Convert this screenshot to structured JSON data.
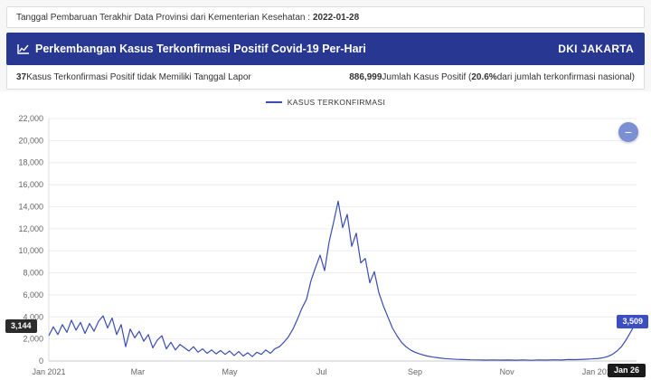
{
  "top_bar": {
    "label": "Tanggal Pembaruan Terakhir Data Provinsi dari Kementerian Kesehatan :",
    "date": "2022-01-28"
  },
  "header": {
    "title": "Perkembangan Kasus Terkonfirmasi Positif Covid-19 Per-Hari",
    "region": "DKI JAKARTA"
  },
  "stats_bar": {
    "left_value": "37",
    "left_label": "Kasus Terkonfirmasi Positif tidak Memiliki Tanggal Lapor",
    "right_value": "886,999",
    "right_label1": "Jumlah Kasus Positif (",
    "right_pct": "20.6%",
    "right_label2": "dari jumlah terkonfirmasi nasional)"
  },
  "chart": {
    "legend": "KASUS TERKONFIRMASI",
    "left_marker": "3,144",
    "right_marker": "3,509",
    "end_tick": "Jan 26",
    "minus_button": "−",
    "colors": {
      "line": "#3a4cb1",
      "header": "#283791",
      "right_marker_bg": "#3c4ec1",
      "left_marker_bg": "#2b2b2b"
    }
  },
  "chart_data": {
    "type": "line",
    "title": "Perkembangan Kasus Terkonfirmasi Positif Covid-19 Per-Hari (DKI Jakarta)",
    "series_name": "KASUS TERKONFIRMASI",
    "ylim": [
      0,
      22000
    ],
    "ytick_step": 2000,
    "grid": true,
    "legend_position": "top-center",
    "xticks": [
      {
        "label": "Jan 2021",
        "date": "2021-01-01"
      },
      {
        "label": "Mar",
        "date": "2021-03-01"
      },
      {
        "label": "May",
        "date": "2021-05-01"
      },
      {
        "label": "Jul",
        "date": "2021-07-01"
      },
      {
        "label": "Sep",
        "date": "2021-09-01"
      },
      {
        "label": "Nov",
        "date": "2021-11-01"
      },
      {
        "label": "Jan 2022",
        "date": "2022-01-01"
      }
    ],
    "x": [
      "2021-01-01",
      "2021-01-04",
      "2021-01-07",
      "2021-01-10",
      "2021-01-13",
      "2021-01-16",
      "2021-01-19",
      "2021-01-22",
      "2021-01-25",
      "2021-01-28",
      "2021-01-31",
      "2021-02-03",
      "2021-02-06",
      "2021-02-09",
      "2021-02-12",
      "2021-02-15",
      "2021-02-18",
      "2021-02-21",
      "2021-02-24",
      "2021-02-27",
      "2021-03-02",
      "2021-03-05",
      "2021-03-08",
      "2021-03-11",
      "2021-03-14",
      "2021-03-17",
      "2021-03-20",
      "2021-03-23",
      "2021-03-26",
      "2021-03-29",
      "2021-04-01",
      "2021-04-04",
      "2021-04-07",
      "2021-04-10",
      "2021-04-13",
      "2021-04-16",
      "2021-04-19",
      "2021-04-22",
      "2021-04-25",
      "2021-04-28",
      "2021-05-01",
      "2021-05-04",
      "2021-05-07",
      "2021-05-10",
      "2021-05-13",
      "2021-05-16",
      "2021-05-19",
      "2021-05-22",
      "2021-05-25",
      "2021-05-28",
      "2021-05-31",
      "2021-06-03",
      "2021-06-06",
      "2021-06-09",
      "2021-06-12",
      "2021-06-15",
      "2021-06-18",
      "2021-06-21",
      "2021-06-24",
      "2021-06-27",
      "2021-06-30",
      "2021-07-03",
      "2021-07-06",
      "2021-07-09",
      "2021-07-12",
      "2021-07-15",
      "2021-07-18",
      "2021-07-21",
      "2021-07-24",
      "2021-07-27",
      "2021-07-30",
      "2021-08-02",
      "2021-08-05",
      "2021-08-08",
      "2021-08-11",
      "2021-08-14",
      "2021-08-17",
      "2021-08-20",
      "2021-08-23",
      "2021-08-26",
      "2021-08-29",
      "2021-09-01",
      "2021-09-05",
      "2021-09-09",
      "2021-09-13",
      "2021-09-17",
      "2021-09-21",
      "2021-09-25",
      "2021-09-29",
      "2021-10-03",
      "2021-10-08",
      "2021-10-13",
      "2021-10-18",
      "2021-10-23",
      "2021-10-28",
      "2021-11-02",
      "2021-11-07",
      "2021-11-12",
      "2021-11-17",
      "2021-11-22",
      "2021-11-27",
      "2021-12-02",
      "2021-12-07",
      "2021-12-12",
      "2021-12-17",
      "2021-12-22",
      "2021-12-27",
      "2022-01-01",
      "2022-01-04",
      "2022-01-07",
      "2022-01-10",
      "2022-01-13",
      "2022-01-16",
      "2022-01-19",
      "2022-01-22",
      "2022-01-24",
      "2022-01-26"
    ],
    "values": [
      2300,
      3100,
      2400,
      3300,
      2600,
      3700,
      2800,
      3500,
      2500,
      3400,
      2700,
      3600,
      4100,
      3000,
      3900,
      2400,
      3300,
      1300,
      2900,
      2100,
      2700,
      1800,
      2400,
      1200,
      1900,
      2300,
      1100,
      1700,
      1000,
      1500,
      1200,
      900,
      1300,
      800,
      1100,
      700,
      1000,
      650,
      950,
      600,
      900,
      500,
      850,
      450,
      750,
      400,
      800,
      600,
      1000,
      700,
      1100,
      1300,
      1700,
      2200,
      2900,
      3800,
      4800,
      5600,
      7300,
      8500,
      9600,
      8200,
      10800,
      12600,
      14500,
      12100,
      13300,
      10400,
      11600,
      8900,
      9300,
      7100,
      8100,
      6200,
      5000,
      4000,
      3000,
      2300,
      1700,
      1300,
      1000,
      800,
      600,
      450,
      350,
      280,
      220,
      180,
      150,
      130,
      110,
      95,
      85,
      100,
      80,
      90,
      70,
      95,
      65,
      100,
      85,
      110,
      90,
      130,
      120,
      160,
      190,
      240,
      300,
      420,
      600,
      900,
      1300,
      1900,
      2600,
      3100,
      3509
    ]
  }
}
